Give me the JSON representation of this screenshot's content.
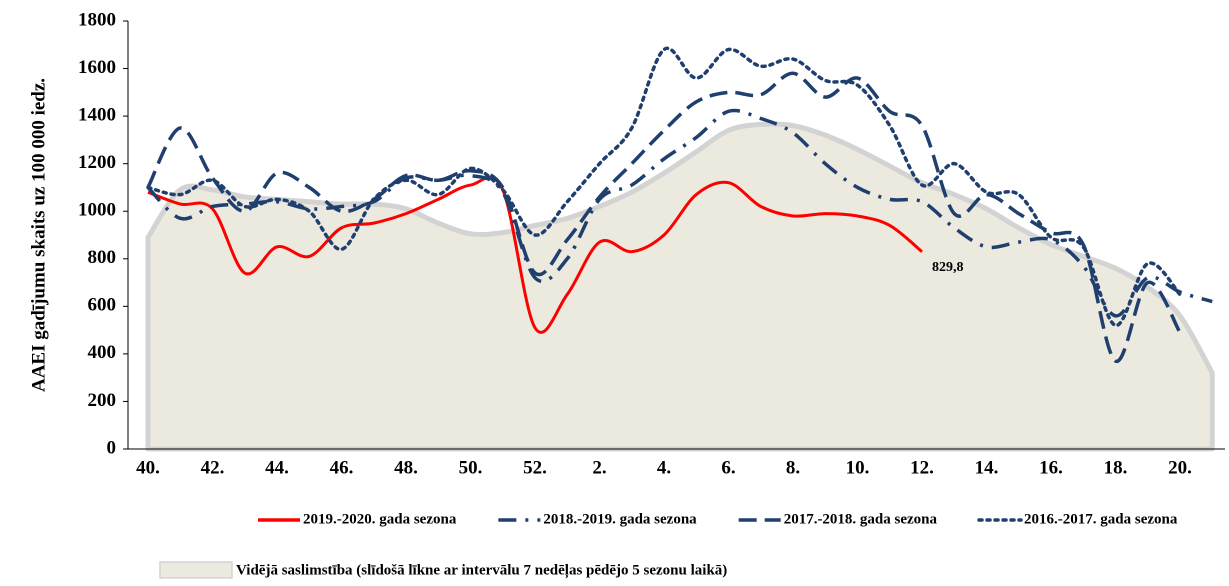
{
  "chart_data": {
    "type": "line",
    "y_label": "AAEI gadījumu skaits uz 100 000 iedz.",
    "categories": [
      "40.",
      null,
      "42.",
      null,
      "44.",
      null,
      "46.",
      null,
      "48.",
      null,
      "50.",
      null,
      "52.",
      null,
      "2.",
      null,
      "4.",
      null,
      "6.",
      null,
      "8.",
      null,
      "10.",
      null,
      "12.",
      null,
      "14.",
      null,
      "16.",
      null,
      "18.",
      null,
      "20.",
      null
    ],
    "ylim": [
      0,
      1800
    ],
    "yticks": [
      0,
      200,
      400,
      600,
      800,
      1000,
      1200,
      1400,
      1600,
      1800
    ],
    "series": [
      {
        "name": "Vidējā saslimstība (slīdošā līkne ar intervālu 7 nedēļas pēdējo 5 sezonu laikā)",
        "color": "#ece9df",
        "edge": "#d3d3d3",
        "style": "area",
        "values": [
          890,
          1090,
          1090,
          1060,
          1050,
          1040,
          1030,
          1030,
          1010,
          950,
          905,
          910,
          940,
          970,
          1020,
          1080,
          1160,
          1250,
          1340,
          1365,
          1360,
          1320,
          1260,
          1190,
          1120,
          1070,
          1010,
          930,
          860,
          810,
          760,
          680,
          560,
          320
        ]
      },
      {
        "name": "2019.-2020. gada sezona",
        "color": "#ff0000",
        "style": "solid",
        "values": [
          1080,
          1030,
          1010,
          740,
          850,
          810,
          930,
          950,
          990,
          1050,
          1110,
          1090,
          510,
          650,
          870,
          830,
          900,
          1070,
          1120,
          1020,
          980,
          990,
          980,
          940,
          829.8,
          null,
          null,
          null,
          null,
          null,
          null,
          null,
          null,
          null
        ],
        "value_labels": [
          null,
          null,
          null,
          null,
          null,
          null,
          null,
          null,
          null,
          null,
          null,
          null,
          null,
          null,
          null,
          null,
          null,
          null,
          null,
          null,
          null,
          null,
          null,
          null,
          "829,8",
          null,
          null,
          null,
          null,
          null,
          null,
          null,
          null,
          null
        ]
      },
      {
        "name": "2018.-2019. gada sezona",
        "color": "#1f3f6e",
        "style": "dashdot",
        "values": [
          1100,
          970,
          1020,
          1030,
          1040,
          1010,
          1020,
          1040,
          1140,
          1130,
          1150,
          1080,
          720,
          800,
          1050,
          1110,
          1220,
          1310,
          1420,
          1390,
          1330,
          1200,
          1100,
          1050,
          1040,
          930,
          850,
          870,
          880,
          770,
          560,
          720,
          660,
          620
        ]
      },
      {
        "name": "2017.-2018. gada sezona",
        "color": "#1f3f6e",
        "style": "dashed",
        "values": [
          1100,
          1350,
          1140,
          1000,
          1160,
          1100,
          1000,
          1050,
          1150,
          1130,
          1170,
          1100,
          740,
          880,
          1060,
          1200,
          1340,
          1460,
          1500,
          1490,
          1580,
          1480,
          1560,
          1420,
          1360,
          990,
          1070,
          990,
          910,
          860,
          370,
          700,
          490,
          null
        ]
      },
      {
        "name": "2016.-2017. gada sezona",
        "color": "#1f3f6e",
        "style": "dotted",
        "values": [
          1100,
          1070,
          1130,
          1020,
          1050,
          1000,
          840,
          1050,
          1130,
          1070,
          1180,
          1090,
          900,
          1040,
          1200,
          1350,
          1680,
          1560,
          1680,
          1610,
          1640,
          1550,
          1530,
          1360,
          1110,
          1200,
          1080,
          1070,
          890,
          850,
          520,
          780,
          650,
          null
        ]
      }
    ]
  }
}
